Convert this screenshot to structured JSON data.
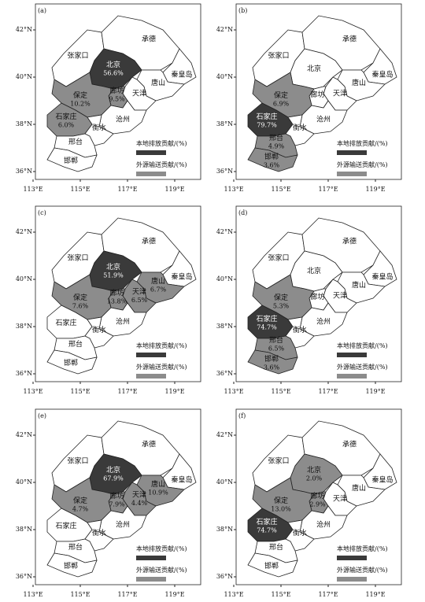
{
  "cities": [
    "张家口",
    "承德",
    "北京",
    "秦皇岛",
    "唐山",
    "天津",
    "廊坊",
    "保定",
    "沧州",
    "石家庄",
    "衡水",
    "邢台",
    "邯郸"
  ],
  "lat_ticks": [
    {
      "value": 42,
      "label": "42°N"
    },
    {
      "value": 40,
      "label": "40°N"
    },
    {
      "value": 38,
      "label": "38°N"
    },
    {
      "value": 36,
      "label": "36°N"
    }
  ],
  "lon_ticks": [
    {
      "value": 113,
      "label": "113°E"
    },
    {
      "value": 115,
      "label": "115°E"
    },
    {
      "value": 117,
      "label": "117°E"
    },
    {
      "value": 119,
      "label": "119°E"
    }
  ],
  "legend": [
    {
      "label": "本地排放贡献/(%)",
      "color": "#3a3a3a"
    },
    {
      "label": "外源输送贡献/(%)",
      "color": "#8c8c8c"
    }
  ],
  "panels": [
    {
      "label": "(a)",
      "fills": [
        "#fff",
        "#fff",
        "#3a3a3a",
        "#fff",
        "#fff",
        "#fff",
        "#8c8c8c",
        "#8c8c8c",
        "#fff",
        "#8c8c8c",
        "#fff",
        "#fff",
        "#fff"
      ],
      "percent": [
        null,
        null,
        "56.6%",
        null,
        null,
        null,
        "9.5%",
        "10.2%",
        null,
        "6.0%",
        null,
        null,
        null
      ]
    },
    {
      "label": "(b)",
      "fills": [
        "#fff",
        "#fff",
        "#fff",
        "#fff",
        "#fff",
        "#fff",
        "#fff",
        "#8c8c8c",
        "#fff",
        "#3a3a3a",
        "#fff",
        "#8c8c8c",
        "#8c8c8c"
      ],
      "percent": [
        null,
        null,
        null,
        null,
        null,
        null,
        null,
        "6.9%",
        null,
        "79.7%",
        null,
        "4.9%",
        "3.6%"
      ]
    },
    {
      "label": "(c)",
      "fills": [
        "#fff",
        "#fff",
        "#3a3a3a",
        "#fff",
        "#8c8c8c",
        "#8c8c8c",
        "#8c8c8c",
        "#8c8c8c",
        "#fff",
        "#fff",
        "#fff",
        "#fff",
        "#fff"
      ],
      "percent": [
        null,
        null,
        "51.9%",
        null,
        "6.7%",
        "6.5%",
        "13.8%",
        "7.6%",
        null,
        null,
        null,
        null,
        null
      ]
    },
    {
      "label": "(d)",
      "fills": [
        "#fff",
        "#fff",
        "#fff",
        "#fff",
        "#fff",
        "#fff",
        "#fff",
        "#8c8c8c",
        "#fff",
        "#3a3a3a",
        "#fff",
        "#8c8c8c",
        "#8c8c8c"
      ],
      "percent": [
        null,
        null,
        null,
        null,
        null,
        null,
        null,
        "5.3%",
        null,
        "74.7%",
        null,
        "6.5%",
        "3.6%"
      ]
    },
    {
      "label": "(e)",
      "fills": [
        "#fff",
        "#fff",
        "#3a3a3a",
        "#fff",
        "#8c8c8c",
        "#8c8c8c",
        "#8c8c8c",
        "#8c8c8c",
        "#fff",
        "#fff",
        "#fff",
        "#fff",
        "#fff"
      ],
      "percent": [
        null,
        null,
        "67.9%",
        null,
        "10.9%",
        "4.4%",
        "7.9%",
        "4.7%",
        null,
        null,
        null,
        null,
        null
      ]
    },
    {
      "label": "(f)",
      "fills": [
        "#fff",
        "#fff",
        "#8c8c8c",
        "#fff",
        "#fff",
        "#fff",
        "#8c8c8c",
        "#8c8c8c",
        "#fff",
        "#3a3a3a",
        "#fff",
        "#fff",
        "#fff"
      ],
      "percent": [
        null,
        null,
        "2.0%",
        null,
        null,
        null,
        "2.9%",
        "13.0%",
        null,
        "74.7%",
        null,
        null,
        null
      ]
    }
  ]
}
